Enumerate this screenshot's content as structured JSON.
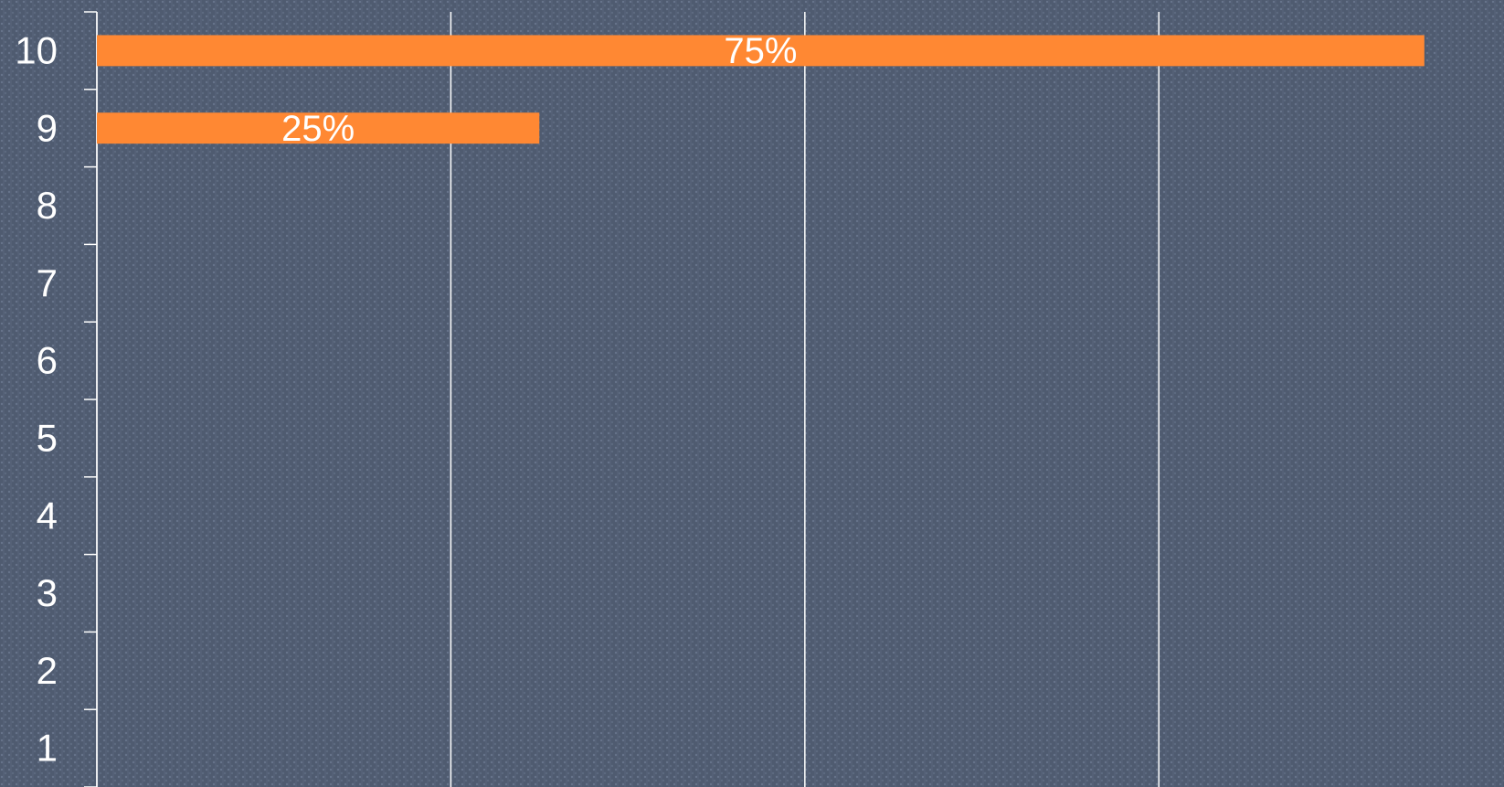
{
  "chart_data": {
    "type": "barh",
    "categories": [
      "1",
      "2",
      "3",
      "4",
      "5",
      "6",
      "7",
      "8",
      "9",
      "10"
    ],
    "values": [
      null,
      null,
      null,
      null,
      null,
      null,
      null,
      null,
      25,
      75
    ],
    "value_labels": [
      null,
      null,
      null,
      null,
      null,
      null,
      null,
      null,
      "25%",
      "75%"
    ],
    "color": "#ff8833",
    "xlim": [
      0,
      79.5
    ],
    "xticks": [
      0,
      20,
      40,
      60
    ],
    "grid": true
  }
}
